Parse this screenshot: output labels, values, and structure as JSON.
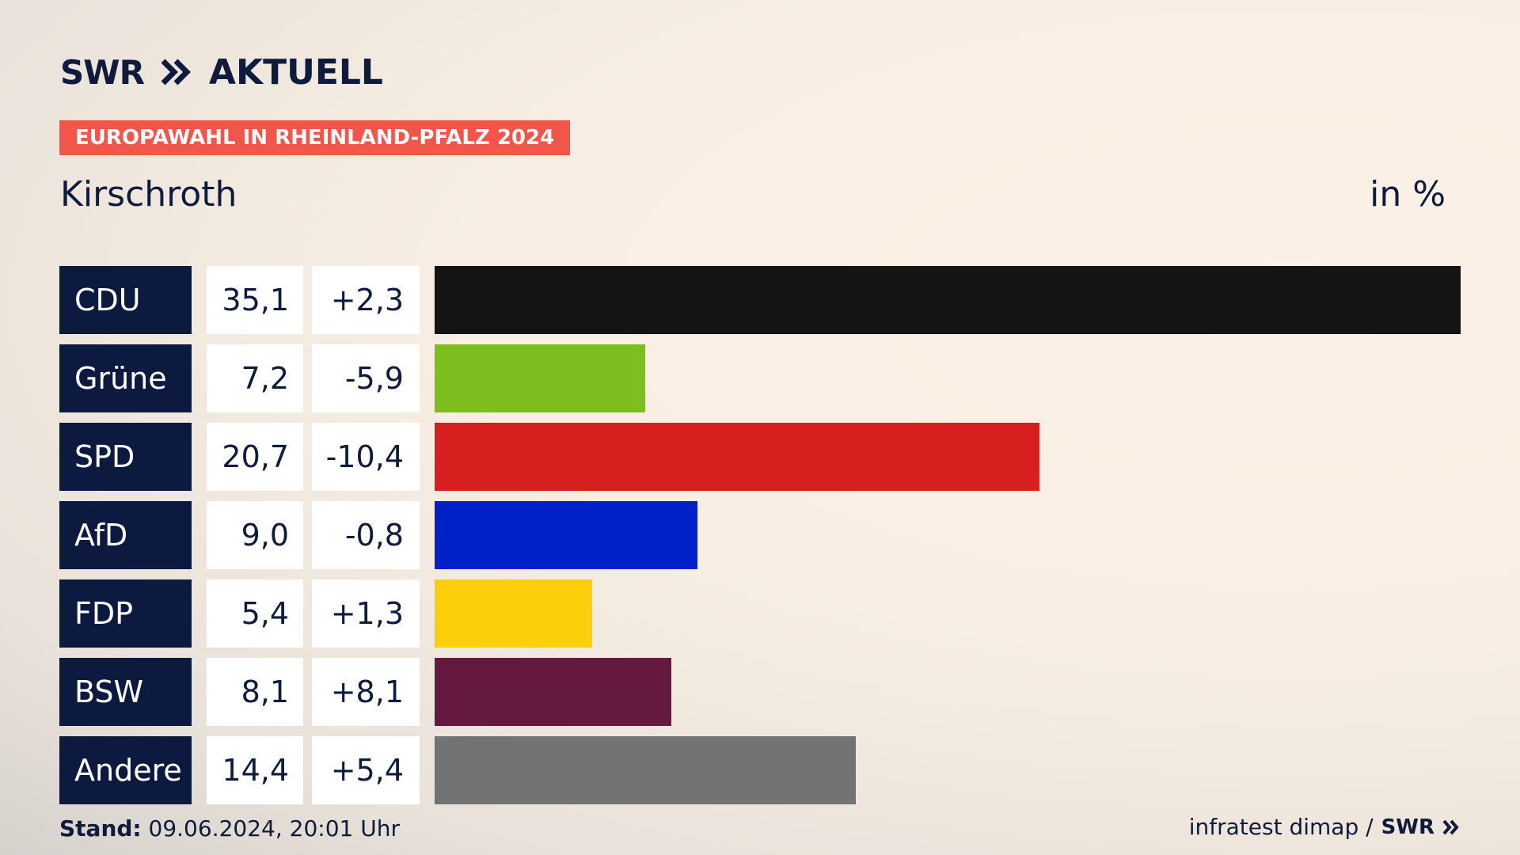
{
  "header": {
    "logo_swr": "SWR",
    "logo_aktuell": "AKTUELL",
    "badge": "EUROPAWAHL IN RHEINLAND-PFALZ 2024",
    "location": "Kirschroth",
    "unit": "in %"
  },
  "colors": {
    "navy": "#0d1a3f",
    "badge": "#f2554a"
  },
  "chart_data": {
    "type": "bar",
    "orientation": "horizontal",
    "title": "Kirschroth",
    "unit": "in %",
    "xlim": [
      0,
      35.1
    ],
    "rows": [
      {
        "party": "CDU",
        "value": 35.1,
        "value_label": "35,1",
        "diff_label": "+2,3",
        "color": "#141414"
      },
      {
        "party": "Grüne",
        "value": 7.2,
        "value_label": "7,2",
        "diff_label": "-5,9",
        "color": "#7bbe1e"
      },
      {
        "party": "SPD",
        "value": 20.7,
        "value_label": "20,7",
        "diff_label": "-10,4",
        "color": "#d71f1f"
      },
      {
        "party": "AfD",
        "value": 9.0,
        "value_label": "9,0",
        "diff_label": "-0,8",
        "color": "#0021c8"
      },
      {
        "party": "FDP",
        "value": 5.4,
        "value_label": "5,4",
        "diff_label": "+1,3",
        "color": "#fdcf0a"
      },
      {
        "party": "BSW",
        "value": 8.1,
        "value_label": "8,1",
        "diff_label": "+8,1",
        "color": "#66193f"
      },
      {
        "party": "Andere",
        "value": 14.4,
        "value_label": "14,4",
        "diff_label": "+5,4",
        "color": "#727374"
      }
    ]
  },
  "footer": {
    "stand_label": "Stand:",
    "stand_value": "09.06.2024, 20:01 Uhr",
    "source": "infratest dimap /",
    "source_logo": "SWR"
  }
}
